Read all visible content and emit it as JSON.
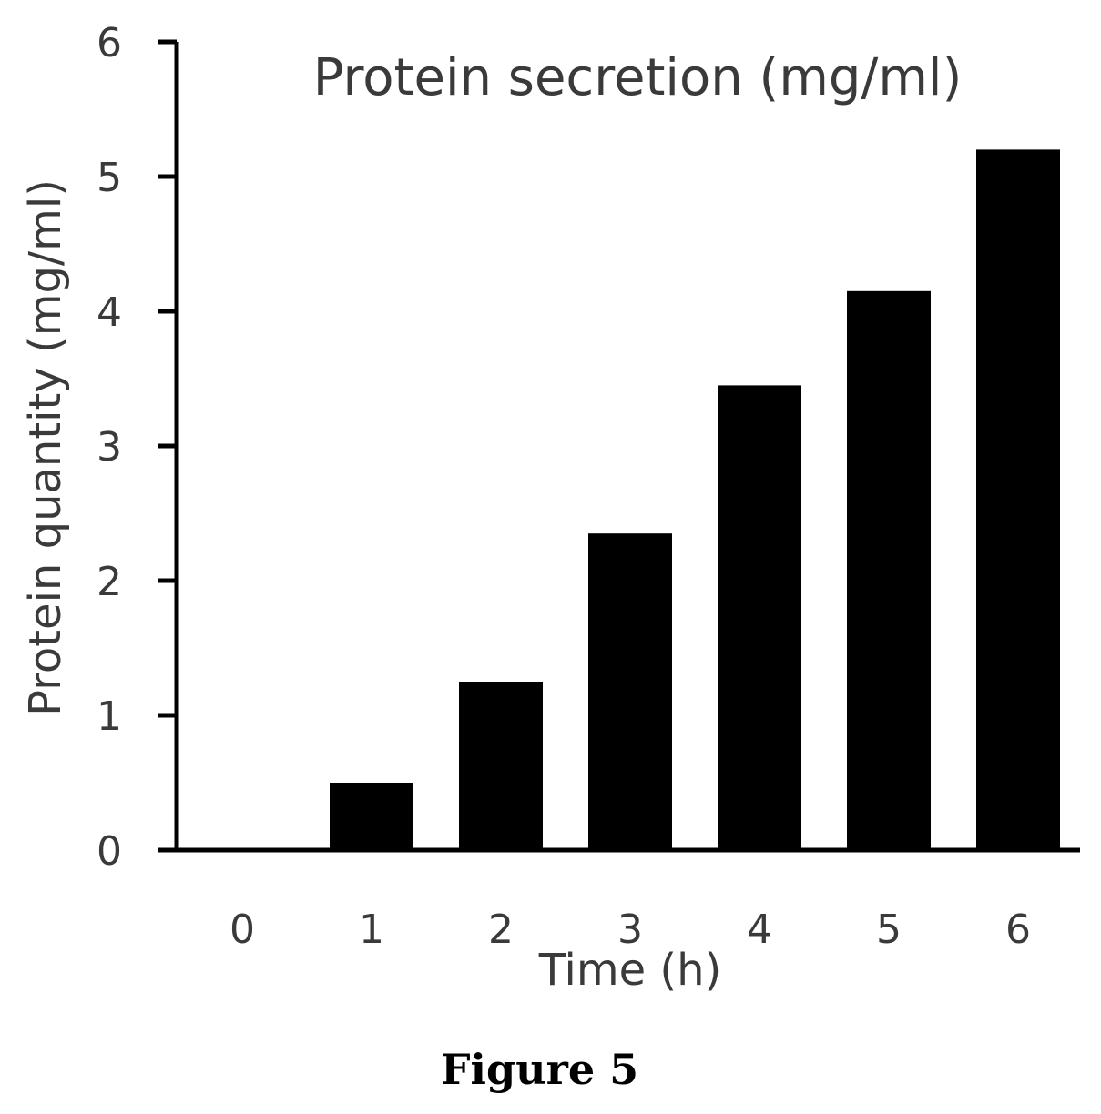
{
  "chart_data": {
    "type": "bar",
    "title": "Protein secretion (mg/ml)",
    "xlabel": "Time (h)",
    "ylabel": "Protein quantity (mg/ml)",
    "categories": [
      "0",
      "1",
      "2",
      "3",
      "4",
      "5",
      "6"
    ],
    "values": [
      0,
      0.5,
      1.25,
      2.35,
      3.45,
      4.15,
      5.2
    ],
    "ylim": [
      0,
      6
    ],
    "yticks": [
      0,
      1,
      2,
      3,
      4,
      5,
      6
    ],
    "grid": false,
    "legend": "none",
    "bar_color": "#000000"
  },
  "caption": "Figure 5"
}
